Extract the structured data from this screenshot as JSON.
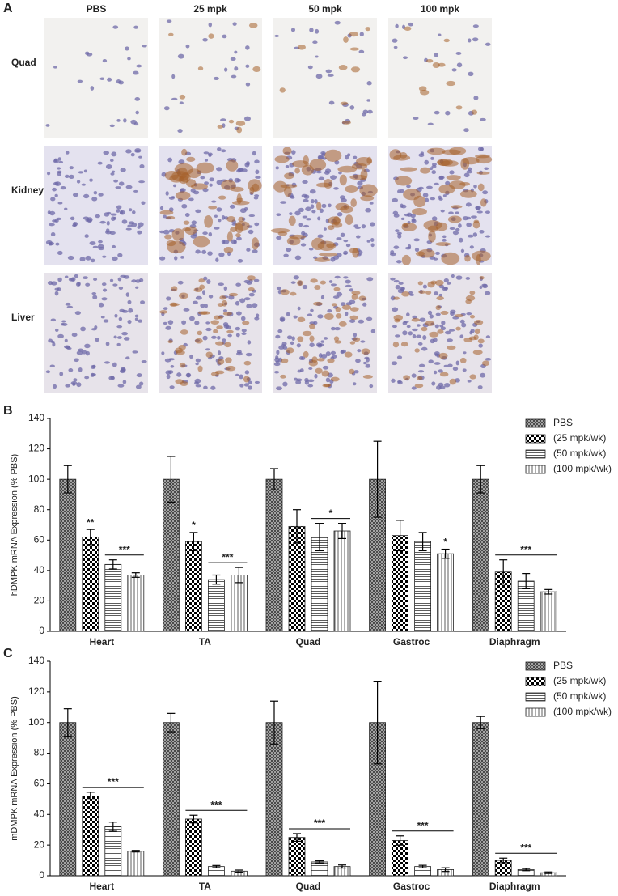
{
  "figure_a": {
    "label": "A",
    "columns": [
      "PBS",
      "25 mpk",
      "50 mpk",
      "100 mpk"
    ],
    "rows": [
      "Quad",
      "Kidney",
      "Liver"
    ]
  },
  "chart_data": [
    {
      "type": "bar",
      "panel": "B",
      "y_label": "hDMPK mRNA Expression (% PBS)",
      "categories": [
        "Heart",
        "TA",
        "Quad",
        "Gastroc",
        "Diaphragm"
      ],
      "series": [
        {
          "name": "PBS",
          "color": "#333333",
          "pattern": "crosshatch",
          "values": [
            100,
            100,
            100,
            100,
            100
          ],
          "errors": [
            9,
            15,
            7,
            25,
            9
          ]
        },
        {
          "name": "(25 mpk/wk)",
          "color": "#000000",
          "pattern": "checker",
          "values": [
            62,
            59,
            69,
            63,
            39
          ],
          "errors": [
            5,
            6,
            11,
            10,
            8
          ]
        },
        {
          "name": "(50 mpk/wk)",
          "color": "#333333",
          "pattern": "horizontal",
          "values": [
            44,
            34,
            62,
            59,
            33
          ],
          "errors": [
            3,
            3,
            9,
            6,
            5
          ]
        },
        {
          "name": "(100 mpk/wk)",
          "color": "#333333",
          "pattern": "vertical",
          "values": [
            37,
            37,
            66,
            51,
            26
          ],
          "errors": [
            1.5,
            5,
            5,
            3,
            1.5
          ]
        }
      ],
      "annotations": [
        {
          "text": "**",
          "category": 0,
          "series": [
            1
          ]
        },
        {
          "text": "***",
          "category": 0,
          "series": [
            2,
            3
          ]
        },
        {
          "text": "*",
          "category": 1,
          "series": [
            1
          ]
        },
        {
          "text": "***",
          "category": 1,
          "series": [
            2,
            3
          ]
        },
        {
          "text": "*",
          "category": 2,
          "series": [
            2,
            3
          ]
        },
        {
          "text": "*",
          "category": 3,
          "series": [
            3
          ]
        },
        {
          "text": "***",
          "category": 4,
          "series": [
            1,
            3
          ]
        }
      ],
      "ylim": [
        0,
        140
      ],
      "yticks": [
        0,
        20,
        40,
        60,
        80,
        100,
        120,
        140
      ],
      "legend": "upper right"
    },
    {
      "type": "bar",
      "panel": "C",
      "y_label": "mDMPK mRNA Expression (% PBS)",
      "categories": [
        "Heart",
        "TA",
        "Quad",
        "Gastroc",
        "Diaphragm"
      ],
      "series": [
        {
          "name": "PBS",
          "color": "#333333",
          "pattern": "crosshatch",
          "values": [
            100,
            100,
            100,
            100,
            100
          ],
          "errors": [
            9,
            6,
            14,
            27,
            4
          ]
        },
        {
          "name": "(25 mpk/wk)",
          "color": "#000000",
          "pattern": "checker",
          "values": [
            52,
            37,
            25,
            23,
            10
          ],
          "errors": [
            2.5,
            2.5,
            2.5,
            3,
            1.5
          ]
        },
        {
          "name": "(50 mpk/wk)",
          "color": "#333333",
          "pattern": "horizontal",
          "values": [
            32,
            6,
            9,
            6,
            4
          ],
          "errors": [
            3,
            0.7,
            0.7,
            0.8,
            0.7
          ]
        },
        {
          "name": "(100 mpk/wk)",
          "color": "#333333",
          "pattern": "vertical",
          "values": [
            16,
            3,
            6,
            4,
            2
          ],
          "errors": [
            0.5,
            0.7,
            1,
            1.2,
            0.5
          ]
        }
      ],
      "annotations": [
        {
          "text": "***",
          "category": 0,
          "series": [
            1,
            3
          ]
        },
        {
          "text": "***",
          "category": 1,
          "series": [
            1,
            3
          ]
        },
        {
          "text": "***",
          "category": 2,
          "series": [
            1,
            3
          ]
        },
        {
          "text": "***",
          "category": 3,
          "series": [
            1,
            3
          ]
        },
        {
          "text": "***",
          "category": 4,
          "series": [
            1,
            3
          ]
        }
      ],
      "ylim": [
        0,
        140
      ],
      "yticks": [
        0,
        20,
        40,
        60,
        80,
        100,
        120,
        140
      ],
      "legend": "upper right"
    }
  ]
}
